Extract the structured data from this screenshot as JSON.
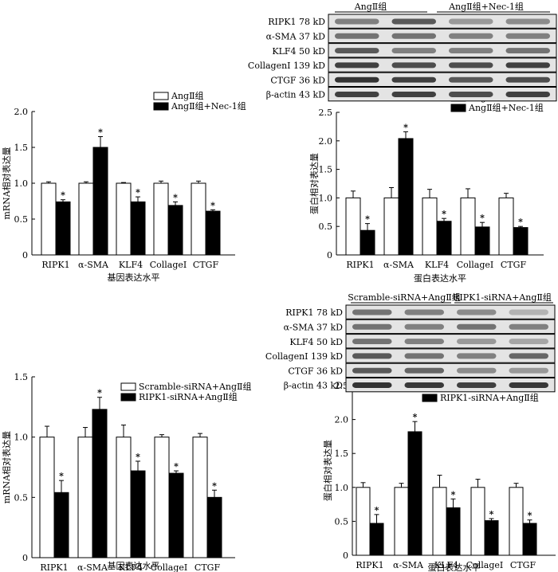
{
  "blots": [
    {
      "groups": [
        "AngⅡ组",
        "AngⅡ组+Nec-1组"
      ],
      "rows": [
        "RIPK1 78 kD",
        "α-SMA 37 kD",
        "KLF4 50 kD",
        "CollagenⅠ 139 kD",
        "CTGF 36 kD",
        "β-actin 43 kD"
      ]
    },
    {
      "groups": [
        "Scramble-siRNA+AngⅡ组",
        "RIPK1-siRNA+AngⅡ组"
      ],
      "rows": [
        "RIPK1 78 kD",
        "α-SMA 37 kD",
        "KLF4 50 kD",
        "CollagenⅠ 139 kD",
        "CTGF 36 kD",
        "β-actin 43 kD"
      ]
    }
  ],
  "chart_data": [
    {
      "type": "bar",
      "xlabel": "基因表达水平",
      "ylabel": "mRNA相对表达量",
      "categories": [
        "RIPK1",
        "α-SMA",
        "KLF4",
        "CollageⅠ",
        "CTGF"
      ],
      "ylim": [
        0,
        2.0
      ],
      "yticks": [
        "0",
        "0.5",
        "1.0",
        "1.5",
        "2.0"
      ],
      "legend_position": "top-right",
      "series": [
        {
          "name": "AngⅡ组",
          "values": [
            1.0,
            1.0,
            1.0,
            1.0,
            1.0
          ],
          "errors": [
            0.02,
            0.02,
            0.01,
            0.03,
            0.03
          ],
          "fill": "#ffffff"
        },
        {
          "name": "AngⅡ组+Nec-1组",
          "values": [
            0.74,
            1.5,
            0.74,
            0.69,
            0.61
          ],
          "errors": [
            0.03,
            0.15,
            0.07,
            0.05,
            0.02
          ],
          "fill": "#000000"
        }
      ],
      "significance": [
        "*",
        "*",
        "*",
        "*",
        "*"
      ]
    },
    {
      "type": "bar",
      "xlabel": "蛋白表达水平",
      "ylabel": "蛋白相对表达量",
      "categories": [
        "RIPK1",
        "α-SMA",
        "KLF4",
        "CollageⅠ",
        "CTGF"
      ],
      "ylim": [
        0,
        2.5
      ],
      "yticks": [
        "0",
        "0.5",
        "1.0",
        "1.5",
        "2.0",
        "2.5"
      ],
      "legend_position": "top-right",
      "series": [
        {
          "name": "AngⅡ组",
          "values": [
            1.0,
            1.0,
            1.0,
            1.0,
            1.0
          ],
          "errors": [
            0.12,
            0.18,
            0.15,
            0.16,
            0.08
          ],
          "fill": "#ffffff"
        },
        {
          "name": "AngⅡ组+Nec-1组",
          "values": [
            0.43,
            2.04,
            0.59,
            0.49,
            0.48
          ],
          "errors": [
            0.12,
            0.12,
            0.05,
            0.08,
            0.02
          ],
          "fill": "#000000"
        }
      ],
      "significance": [
        "*",
        "*",
        "*",
        "*",
        "*"
      ]
    },
    {
      "type": "bar",
      "xlabel": "基因表达水平",
      "ylabel": "mRNA相对表达量",
      "categories": [
        "RIPK1",
        "α-SMA",
        "KLF4",
        "CollageⅠ",
        "CTGF"
      ],
      "ylim": [
        0,
        1.5
      ],
      "yticks": [
        "0",
        "0.5",
        "1.0",
        "1.5"
      ],
      "legend_position": "top-right",
      "series": [
        {
          "name": "Scramble-siRNA+AngⅡ组",
          "values": [
            1.0,
            1.0,
            1.0,
            1.0,
            1.0
          ],
          "errors": [
            0.09,
            0.08,
            0.1,
            0.02,
            0.03
          ],
          "fill": "#ffffff"
        },
        {
          "name": "RIPK1-siRNA+AngⅡ组",
          "values": [
            0.54,
            1.23,
            0.72,
            0.7,
            0.5
          ],
          "errors": [
            0.1,
            0.1,
            0.08,
            0.02,
            0.06
          ],
          "fill": "#000000"
        }
      ],
      "significance": [
        "*",
        "*",
        "*",
        "*",
        "*"
      ]
    },
    {
      "type": "bar",
      "xlabel": "蛋白表达水平",
      "ylabel": "蛋白相对表达量",
      "categories": [
        "RIPK1",
        "α-SMA",
        "KLF4",
        "CollageⅠ",
        "CTGF"
      ],
      "ylim": [
        0,
        2.5
      ],
      "yticks": [
        "0",
        "0.5",
        "1.0",
        "1.5",
        "2.0",
        "2.5"
      ],
      "legend_position": "top-right",
      "series": [
        {
          "name": "Scramble-siRNA+AngⅡ组",
          "values": [
            1.0,
            1.0,
            1.0,
            1.0,
            1.0
          ],
          "errors": [
            0.07,
            0.06,
            0.18,
            0.12,
            0.06
          ],
          "fill": "#ffffff"
        },
        {
          "name": "RIPK1-siRNA+AngⅡ组",
          "values": [
            0.47,
            1.82,
            0.7,
            0.51,
            0.47
          ],
          "errors": [
            0.13,
            0.15,
            0.13,
            0.03,
            0.05
          ],
          "fill": "#000000"
        }
      ],
      "significance": [
        "*",
        "*",
        "*",
        "*",
        "*"
      ]
    }
  ]
}
